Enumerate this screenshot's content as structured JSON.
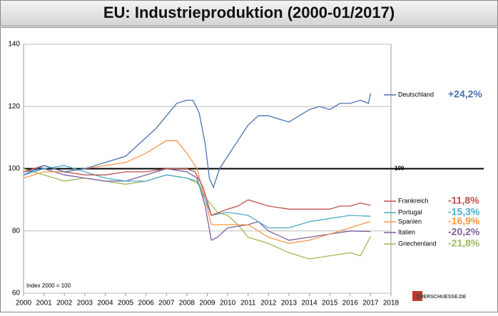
{
  "chart_data": {
    "type": "line",
    "title": "EU: Industrieproduktion (2000-01/2017)",
    "note": "Index 2000 = 100",
    "source": "QUERSCHUESSE.DE",
    "reference_line": 100,
    "xlim": [
      2000,
      2018
    ],
    "xticks": [
      2000,
      2001,
      2002,
      2003,
      2004,
      2005,
      2006,
      2007,
      2008,
      2009,
      2010,
      2011,
      2012,
      2013,
      2014,
      2015,
      2016,
      2017,
      2018
    ],
    "ylim": [
      60,
      140
    ],
    "yticks": [
      60,
      80,
      100,
      120,
      140
    ],
    "grid": true,
    "series": [
      {
        "name": "Deutschland",
        "change_label": "+24,2%",
        "color": "#4a72b0",
        "x": [
          2000,
          2001,
          2002,
          2003,
          2004,
          2005,
          2006,
          2006.5,
          2007,
          2007.5,
          2008,
          2008.3,
          2008.6,
          2008.9,
          2009.1,
          2009.3,
          2009.6,
          2010,
          2010.5,
          2011,
          2011.5,
          2012,
          2012.5,
          2013,
          2013.5,
          2014,
          2014.5,
          2015,
          2015.5,
          2016,
          2016.5,
          2016.9,
          2017
        ],
        "values": [
          98,
          101,
          99,
          100,
          102,
          104,
          110,
          113,
          117,
          121,
          122,
          122,
          118,
          108,
          97,
          94,
          100,
          104,
          109,
          114,
          117,
          117,
          116,
          115,
          117,
          119,
          120,
          119,
          121,
          121,
          122,
          121,
          124.2
        ]
      },
      {
        "name": "Frankreich",
        "change_label": "-11,8%",
        "color": "#c0504d",
        "x": [
          2000,
          2001,
          2002,
          2003,
          2004,
          2005,
          2006,
          2007,
          2008,
          2008.4,
          2008.8,
          2009.2,
          2009.6,
          2010,
          2010.5,
          2011,
          2011.5,
          2012,
          2013,
          2014,
          2015,
          2015.5,
          2016,
          2016.5,
          2017
        ],
        "values": [
          99,
          101,
          99,
          98,
          98,
          99,
          99,
          100,
          100,
          99,
          94,
          85,
          86,
          87,
          88,
          90,
          89,
          88,
          87,
          87,
          87,
          88,
          88,
          89,
          88.2
        ]
      },
      {
        "name": "Portugal",
        "change_label": "-15,3%",
        "color": "#4bacc6",
        "x": [
          2000,
          2001,
          2002,
          2003,
          2004,
          2005,
          2006,
          2007,
          2008,
          2008.5,
          2008.9,
          2009.2,
          2010,
          2011,
          2012,
          2013,
          2014,
          2015,
          2016,
          2017
        ],
        "values": [
          98,
          100,
          101,
          99,
          97,
          96,
          96,
          98,
          97,
          96,
          90,
          85,
          86,
          85,
          81,
          81,
          83,
          84,
          85,
          84.7
        ]
      },
      {
        "name": "Spanien",
        "change_label": "-16,9%",
        "color": "#f79646",
        "x": [
          2000,
          2001,
          2002,
          2003,
          2004,
          2005,
          2006,
          2007,
          2007.5,
          2008,
          2008.5,
          2008.9,
          2009.2,
          2010,
          2011,
          2012,
          2013,
          2014,
          2015,
          2016,
          2017
        ],
        "values": [
          97,
          99,
          99,
          100,
          101,
          102,
          105,
          109,
          109,
          105,
          100,
          90,
          82,
          82,
          82,
          78,
          76,
          77,
          79,
          81,
          83.1
        ]
      },
      {
        "name": "Italien",
        "change_label": "-20,2%",
        "color": "#7f5fa0",
        "x": [
          2000,
          2001,
          2002,
          2003,
          2004,
          2005,
          2006,
          2007,
          2008,
          2008.5,
          2008.9,
          2009.2,
          2009.5,
          2010,
          2011,
          2011.5,
          2012,
          2013,
          2014,
          2015,
          2016,
          2017
        ],
        "values": [
          99,
          100,
          98,
          97,
          96,
          96,
          98,
          100,
          99,
          97,
          88,
          77,
          78,
          81,
          82,
          83,
          80,
          77,
          78,
          79,
          80,
          79.8
        ]
      },
      {
        "name": "Griechenland",
        "change_label": "-21,8%",
        "color": "#9bbb59",
        "x": [
          2000,
          2001,
          2002,
          2003,
          2004,
          2005,
          2006,
          2007,
          2008,
          2008.6,
          2009,
          2009.5,
          2010,
          2010.5,
          2011,
          2012,
          2013,
          2014,
          2015,
          2016,
          2016.5,
          2017
        ],
        "values": [
          100,
          98,
          96,
          97,
          96,
          95,
          96,
          98,
          97,
          95,
          90,
          86,
          85,
          82,
          78,
          76,
          73,
          71,
          72,
          73,
          72,
          78.2
        ]
      }
    ]
  }
}
